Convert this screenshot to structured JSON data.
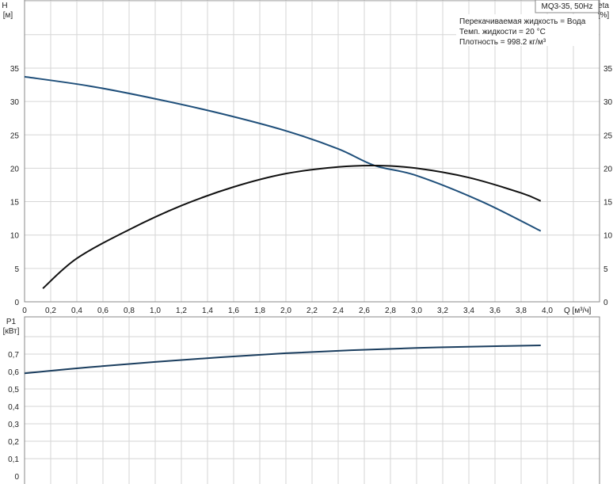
{
  "chart_data": [
    {
      "type": "line",
      "title": "MQ3-35, 50Hz",
      "annotations": [
        "Перекачиваемая жидкость = Вода",
        "Темп. жидкости = 20 °C",
        "Плотность = 998.2 кг/м³"
      ],
      "xlabel": "Q [м³/ч]",
      "ylabel": "H",
      "ylabel_unit": "[м]",
      "y2label": "eta",
      "y2label_unit": "[%]",
      "xlim": [
        0,
        4.4
      ],
      "ylim": [
        0,
        40
      ],
      "xticks": [
        "0",
        "0,2",
        "0,4",
        "0,6",
        "0,8",
        "1,0",
        "1,2",
        "1,4",
        "1,6",
        "1,8",
        "2,0",
        "2,2",
        "2,4",
        "2,6",
        "2,8",
        "3,0",
        "3,2",
        "3,4",
        "3,6",
        "3,8",
        "4,0"
      ],
      "yticks": [
        "0",
        "5",
        "10",
        "15",
        "20",
        "25",
        "30",
        "35"
      ],
      "grid": true,
      "series": [
        {
          "name": "H",
          "color": "#1f4f7a",
          "x": [
            0,
            0.5,
            1.0,
            1.5,
            2.0,
            2.4,
            2.68,
            3.0,
            3.5,
            3.95
          ],
          "y": [
            33.7,
            32.3,
            30.4,
            28.2,
            25.6,
            22.9,
            20.4,
            18.9,
            15.0,
            10.6
          ]
        },
        {
          "name": "eta",
          "color": "#111111",
          "x": [
            0.14,
            0.4,
            0.8,
            1.2,
            1.6,
            2.0,
            2.4,
            2.7,
            3.0,
            3.4,
            3.8,
            3.95
          ],
          "y": [
            2.0,
            6.5,
            10.8,
            14.4,
            17.2,
            19.2,
            20.2,
            20.4,
            20.0,
            18.6,
            16.3,
            15.1
          ]
        }
      ]
    },
    {
      "type": "line",
      "ylabel": "P1",
      "ylabel_unit": "[кВт]",
      "xlim": [
        0,
        4.4
      ],
      "ylim": [
        0,
        0.8
      ],
      "yticks": [
        "0",
        "0,1",
        "0,2",
        "0,3",
        "0,4",
        "0,5",
        "0,6",
        "0,7"
      ],
      "grid": true,
      "series": [
        {
          "name": "P1",
          "color": "#1a3d5e",
          "x": [
            0,
            0.5,
            1.0,
            1.5,
            2.0,
            2.5,
            3.0,
            3.5,
            3.95
          ],
          "y": [
            0.59,
            0.625,
            0.655,
            0.682,
            0.705,
            0.722,
            0.735,
            0.744,
            0.75
          ]
        }
      ]
    }
  ]
}
